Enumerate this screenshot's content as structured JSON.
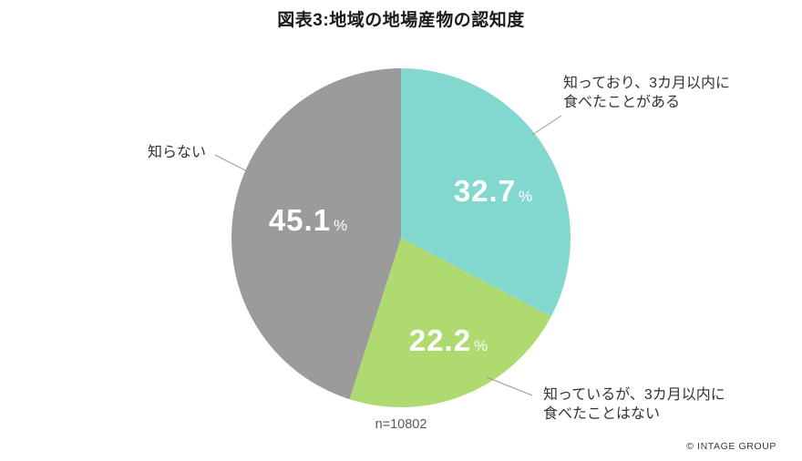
{
  "title": "図表3:地域の地場産物の認知度",
  "chart_data": {
    "type": "pie",
    "title": "図表3:地域の地場産物の認知度",
    "unit": "%",
    "start_angle_deg": 0,
    "direction": "clockwise",
    "legend_position": "callout-labels",
    "slices": [
      {
        "label": "知っており、3カ月以内に食べたことがある",
        "value": 32.7,
        "color": "#82d7ce"
      },
      {
        "label": "知っているが、3カ月以内に食べたことはない",
        "value": 22.2,
        "color": "#aeda70"
      },
      {
        "label": "知らない",
        "value": 45.1,
        "color": "#9b9b9b"
      }
    ],
    "sample_size_label": "n=10802"
  },
  "annotations": {
    "known_eaten": {
      "lines": [
        "知っており、3カ月以内に",
        "食べたことがある"
      ]
    },
    "known_not_eaten": {
      "lines": [
        "知っているが、3カ月以内に",
        "食べたことはない"
      ]
    },
    "unknown": {
      "lines": [
        "知らない"
      ]
    }
  },
  "footer": {
    "sample_size": "n=10802",
    "copyright": "© INTAGE GROUP"
  }
}
